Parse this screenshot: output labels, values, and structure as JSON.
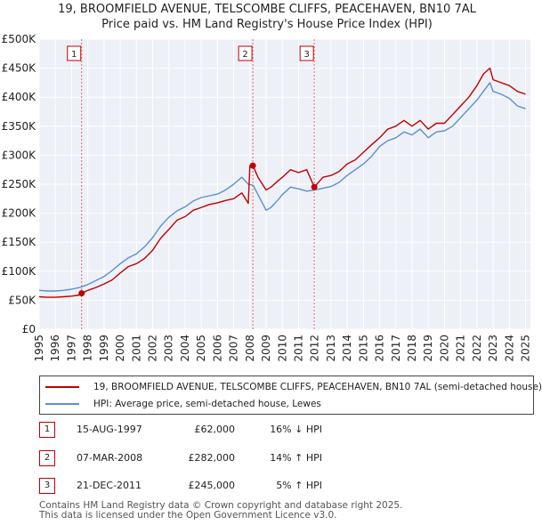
{
  "chart_data": {
    "type": "line",
    "title": "19, BROOMFIELD AVENUE, TELSCOMBE CLIFFS, PEACEHAVEN, BN10 7AL",
    "subtitle": "Price paid vs. HM Land Registry's House Price Index (HPI)",
    "xlabel": "",
    "ylabel": "",
    "xlim": [
      1995,
      2025.3
    ],
    "ylim": [
      0,
      500000
    ],
    "y_ticks": [
      0,
      50000,
      100000,
      150000,
      200000,
      250000,
      300000,
      350000,
      400000,
      450000,
      500000
    ],
    "y_tick_labels": [
      "£0",
      "£50K",
      "£100K",
      "£150K",
      "£200K",
      "£250K",
      "£300K",
      "£350K",
      "£400K",
      "£450K",
      "£500K"
    ],
    "x_ticks": [
      1995,
      1996,
      1997,
      1998,
      1999,
      2000,
      2001,
      2002,
      2003,
      2004,
      2005,
      2006,
      2007,
      2008,
      2009,
      2010,
      2011,
      2012,
      2013,
      2014,
      2015,
      2016,
      2017,
      2018,
      2019,
      2020,
      2021,
      2022,
      2023,
      2024,
      2025
    ],
    "x_tick_labels": [
      "1995",
      "1996",
      "1997",
      "1998",
      "1999",
      "2000",
      "2001",
      "2002",
      "2003",
      "2004",
      "2005",
      "2006",
      "2007",
      "2008",
      "2009",
      "2010",
      "2011",
      "2012",
      "2013",
      "2014",
      "2015",
      "2016",
      "2017",
      "2018",
      "2019",
      "2020",
      "2021",
      "2022",
      "2023",
      "2024",
      "2025"
    ],
    "grid": true,
    "series": [
      {
        "name": "19, BROOMFIELD AVENUE, TELSCOMBE CLIFFS, PEACEHAVEN, BN10 7AL (semi-detached house)",
        "color": "#c00000",
        "x": [
          1995.0,
          1995.5,
          1996.0,
          1996.5,
          1997.0,
          1997.5,
          1997.62,
          1998.0,
          1998.5,
          1999.0,
          1999.5,
          2000.0,
          2000.5,
          2001.0,
          2001.5,
          2002.0,
          2002.5,
          2003.0,
          2003.5,
          2004.0,
          2004.5,
          2005.0,
          2005.5,
          2006.0,
          2006.5,
          2007.0,
          2007.5,
          2007.9,
          2008.0,
          2008.18,
          2008.5,
          2009.0,
          2009.3,
          2009.7,
          2010.0,
          2010.5,
          2011.0,
          2011.5,
          2011.97,
          2012.5,
          2013.0,
          2013.5,
          2014.0,
          2014.5,
          2015.0,
          2015.5,
          2016.0,
          2016.5,
          2017.0,
          2017.5,
          2018.0,
          2018.5,
          2019.0,
          2019.5,
          2020.0,
          2020.5,
          2021.0,
          2021.5,
          2022.0,
          2022.4,
          2022.8,
          2023.0,
          2023.5,
          2024.0,
          2024.5,
          2025.0
        ],
        "y": [
          56000,
          55000,
          55000,
          56000,
          57000,
          59000,
          62000,
          67000,
          72000,
          78000,
          85000,
          97000,
          108000,
          113000,
          122000,
          136000,
          157000,
          172000,
          188000,
          194000,
          205000,
          210000,
          215000,
          218000,
          222000,
          225000,
          235000,
          217000,
          282000,
          282000,
          262000,
          240000,
          245000,
          255000,
          262000,
          275000,
          270000,
          275000,
          245000,
          262000,
          265000,
          272000,
          285000,
          292000,
          305000,
          318000,
          330000,
          345000,
          350000,
          360000,
          350000,
          360000,
          345000,
          355000,
          355000,
          370000,
          385000,
          400000,
          420000,
          440000,
          450000,
          430000,
          425000,
          420000,
          410000,
          405000
        ]
      },
      {
        "name": "HPI: Average price, semi-detached house, Lewes",
        "color": "#5b8fd0",
        "x": [
          1995.0,
          1995.5,
          1996.0,
          1996.5,
          1997.0,
          1997.5,
          1998.0,
          1998.5,
          1999.0,
          1999.5,
          2000.0,
          2000.5,
          2001.0,
          2001.5,
          2002.0,
          2002.5,
          2003.0,
          2003.5,
          2004.0,
          2004.5,
          2005.0,
          2005.5,
          2006.0,
          2006.5,
          2007.0,
          2007.5,
          2007.9,
          2008.2,
          2008.5,
          2009.0,
          2009.3,
          2009.7,
          2010.0,
          2010.5,
          2011.0,
          2011.5,
          2012.0,
          2012.5,
          2013.0,
          2013.5,
          2014.0,
          2014.5,
          2015.0,
          2015.5,
          2016.0,
          2016.5,
          2017.0,
          2017.5,
          2018.0,
          2018.5,
          2019.0,
          2019.5,
          2020.0,
          2020.5,
          2021.0,
          2021.5,
          2022.0,
          2022.4,
          2022.8,
          2023.0,
          2023.5,
          2024.0,
          2024.5,
          2025.0
        ],
        "y": [
          67000,
          66000,
          66000,
          67000,
          69000,
          72000,
          77000,
          84000,
          91000,
          101000,
          113000,
          123000,
          130000,
          142000,
          158000,
          178000,
          193000,
          204000,
          211000,
          221000,
          227000,
          230000,
          233000,
          240000,
          250000,
          262000,
          250000,
          248000,
          232000,
          205000,
          210000,
          222000,
          232000,
          245000,
          242000,
          238000,
          240000,
          243000,
          246000,
          253000,
          265000,
          275000,
          285000,
          298000,
          315000,
          325000,
          330000,
          340000,
          335000,
          345000,
          330000,
          340000,
          342000,
          350000,
          365000,
          380000,
          395000,
          410000,
          425000,
          410000,
          405000,
          398000,
          385000,
          380000
        ]
      }
    ],
    "sales": [
      {
        "marker": "1",
        "x": 1997.62,
        "y": 62000
      },
      {
        "marker": "2",
        "x": 2008.18,
        "y": 282000
      },
      {
        "marker": "3",
        "x": 2011.97,
        "y": 245000
      }
    ]
  },
  "legend": {
    "property_label": "19, BROOMFIELD AVENUE, TELSCOMBE CLIFFS, PEACEHAVEN, BN10 7AL (semi-detached house)",
    "hpi_label": "HPI: Average price, semi-detached house, Lewes"
  },
  "sales_table": [
    {
      "marker": "1",
      "date": "15-AUG-1997",
      "price": "£62,000",
      "hpi": "16% ↓ HPI"
    },
    {
      "marker": "2",
      "date": "07-MAR-2008",
      "price": "£282,000",
      "hpi": "14% ↑ HPI"
    },
    {
      "marker": "3",
      "date": "21-DEC-2011",
      "price": "£245,000",
      "hpi": "5% ↑ HPI"
    }
  ],
  "footer": {
    "line1": "Contains HM Land Registry data © Crown copyright and database right 2025.",
    "line2": "This data is licensed under the Open Government Licence v3.0."
  }
}
